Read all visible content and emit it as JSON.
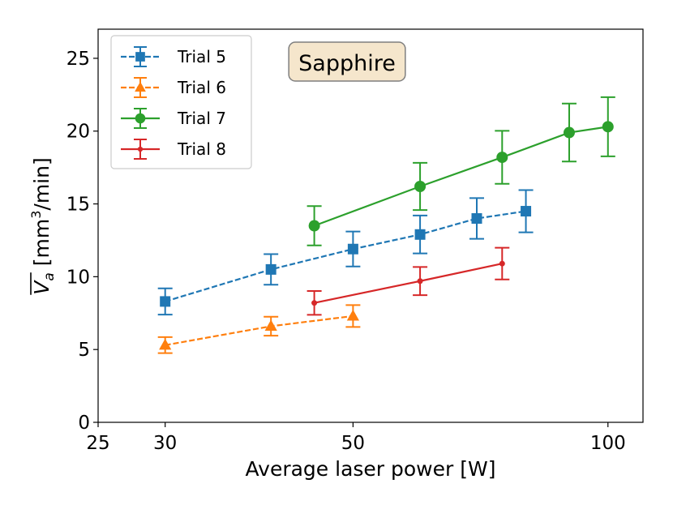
{
  "chart_data": {
    "type": "line",
    "title": "",
    "xlabel": "Average laser power [W]",
    "ylabel": {
      "main": "V",
      "subscript": "a",
      "unit_prefix": "[mm",
      "unit_superscript": "3",
      "unit_suffix": "/min]"
    },
    "xscale": "log",
    "xlim": [
      25,
      110
    ],
    "ylim": [
      0,
      27
    ],
    "xticks": [
      25,
      30,
      50,
      100
    ],
    "xtick_labels": [
      "25",
      "30",
      "50",
      "100"
    ],
    "yticks": [
      0,
      5,
      10,
      15,
      20,
      25
    ],
    "ytick_labels": [
      "0",
      "5",
      "10",
      "15",
      "20",
      "25"
    ],
    "grid": false,
    "legend_position": "top-left",
    "annotation": {
      "text": "Sapphire",
      "background": "#f5e6cc",
      "border": "#7f7f7f"
    },
    "series": [
      {
        "name": "Trial 5",
        "color": "#1f77b4",
        "marker": "square",
        "linestyle": "dashed",
        "x": [
          30,
          40,
          50,
          60,
          70,
          80
        ],
        "y": [
          8.3,
          10.5,
          11.9,
          12.9,
          14.0,
          14.5
        ],
        "yerr": [
          0.9,
          1.05,
          1.2,
          1.3,
          1.4,
          1.45
        ]
      },
      {
        "name": "Trial 6",
        "color": "#ff7f0e",
        "marker": "triangle",
        "linestyle": "dashed",
        "x": [
          30,
          40,
          50
        ],
        "y": [
          5.3,
          6.6,
          7.3
        ],
        "yerr": [
          0.55,
          0.65,
          0.75
        ]
      },
      {
        "name": "Trial 7",
        "color": "#2ca02c",
        "marker": "circle",
        "linestyle": "solid",
        "x": [
          45,
          60,
          75,
          90,
          100
        ],
        "y": [
          13.5,
          16.2,
          18.2,
          19.9,
          20.3
        ],
        "yerr": [
          1.35,
          1.62,
          1.82,
          1.99,
          2.03
        ]
      },
      {
        "name": "Trial 8",
        "color": "#d62728",
        "marker": "dot",
        "linestyle": "solid",
        "x": [
          45,
          60,
          75
        ],
        "y": [
          8.2,
          9.7,
          10.9
        ],
        "yerr": [
          0.82,
          0.97,
          1.09
        ]
      }
    ]
  }
}
